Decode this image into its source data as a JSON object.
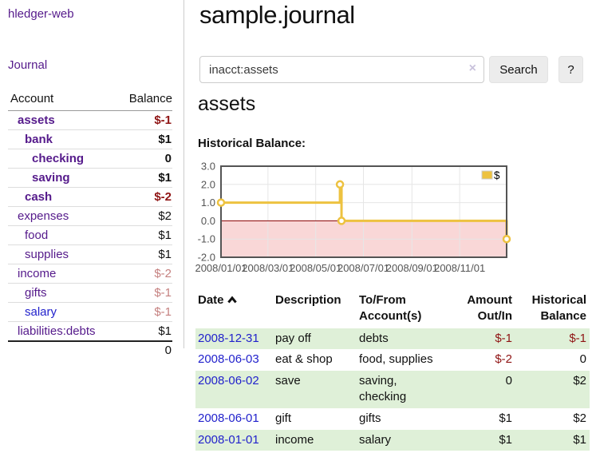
{
  "app": {
    "brand": "hledger-web"
  },
  "sidebar": {
    "journal_label": "Journal",
    "accounts_table": {
      "headers": {
        "account": "Account",
        "balance": "Balance"
      },
      "rows": [
        {
          "name": "assets",
          "depth": 0,
          "bold": true,
          "color": "purple",
          "balance": "$-1",
          "balance_class": "neg"
        },
        {
          "name": "bank",
          "depth": 1,
          "bold": true,
          "color": "purple",
          "balance": "$1",
          "balance_class": ""
        },
        {
          "name": "checking",
          "depth": 2,
          "bold": true,
          "color": "purple",
          "balance": "0",
          "balance_class": ""
        },
        {
          "name": "saving",
          "depth": 2,
          "bold": true,
          "color": "purple",
          "balance": "$1",
          "balance_class": ""
        },
        {
          "name": "cash",
          "depth": 1,
          "bold": true,
          "color": "purple",
          "balance": "$-2",
          "balance_class": "neg"
        },
        {
          "name": "expenses",
          "depth": 0,
          "bold": false,
          "color": "purple",
          "balance": "$2",
          "balance_class": ""
        },
        {
          "name": "food",
          "depth": 1,
          "bold": false,
          "color": "purple",
          "balance": "$1",
          "balance_class": ""
        },
        {
          "name": "supplies",
          "depth": 1,
          "bold": false,
          "color": "purple",
          "balance": "$1",
          "balance_class": ""
        },
        {
          "name": "income",
          "depth": 0,
          "bold": false,
          "color": "purple",
          "balance": "$-2",
          "balance_class": "negsoft"
        },
        {
          "name": "gifts",
          "depth": 1,
          "bold": false,
          "color": "purple",
          "balance": "$-1",
          "balance_class": "negsoft"
        },
        {
          "name": "salary",
          "depth": 1,
          "bold": false,
          "color": "blue",
          "balance": "$-1",
          "balance_class": "negsoft"
        },
        {
          "name": "liabilities:debts",
          "depth": 0,
          "bold": false,
          "color": "purple",
          "balance": "$1",
          "balance_class": ""
        }
      ],
      "total": "0"
    }
  },
  "main": {
    "title": "sample.journal",
    "search": {
      "value": "inacct:assets",
      "clear_icon": "×",
      "button_label": "Search",
      "help_label": "?"
    },
    "account_heading": "assets",
    "register": {
      "sort": {
        "column": "date",
        "direction": "ascending"
      },
      "headers": {
        "date": "Date",
        "description": "Description",
        "accounts": "To/From Account(s)",
        "amount": "Amount Out/In",
        "balance": "Historical Balance"
      },
      "rows": [
        {
          "date": "2008-12-31",
          "description": "pay off",
          "accounts": "debts",
          "amount": "$-1",
          "amount_negative": true,
          "balance": "$-1",
          "balance_negative": true,
          "shaded": true
        },
        {
          "date": "2008-06-03",
          "description": "eat & shop",
          "accounts": "food, supplies",
          "amount": "$-2",
          "amount_negative": true,
          "balance": "0",
          "balance_negative": false,
          "shaded": false
        },
        {
          "date": "2008-06-02",
          "description": "save",
          "accounts": "saving, checking",
          "amount": "0",
          "amount_negative": false,
          "balance": "$2",
          "balance_negative": false,
          "shaded": true
        },
        {
          "date": "2008-06-01",
          "description": "gift",
          "accounts": "gifts",
          "amount": "$1",
          "amount_negative": false,
          "balance": "$2",
          "balance_negative": false,
          "shaded": false
        },
        {
          "date": "2008-01-01",
          "description": "income",
          "accounts": "salary",
          "amount": "$1",
          "amount_negative": false,
          "balance": "$1",
          "balance_negative": false,
          "shaded": true
        }
      ]
    }
  },
  "chart_data": {
    "type": "line",
    "step": true,
    "title": "Historical Balance:",
    "series": [
      {
        "name": "$",
        "color": "#edc240",
        "points": [
          {
            "x": "2008-01-01",
            "y": 1
          },
          {
            "x": "2008-06-01",
            "y": 2
          },
          {
            "x": "2008-06-03",
            "y": 0
          },
          {
            "x": "2008-12-31",
            "y": -1
          }
        ]
      }
    ],
    "xlim": [
      "2008-01-01",
      "2008-12-31"
    ],
    "ylim": [
      -2,
      3
    ],
    "yticks": [
      3.0,
      2.0,
      1.0,
      0.0,
      -1.0,
      -2.0
    ],
    "xticks": [
      {
        "x": "2008-01-01",
        "label": "2008/01/01"
      },
      {
        "x": "2008-03-01",
        "label": "2008/03/01"
      },
      {
        "x": "2008-05-01",
        "label": "2008/05/01"
      },
      {
        "x": "2008-07-01",
        "label": "2008/07/01"
      },
      {
        "x": "2008-09-01",
        "label": "2008/09/01"
      },
      {
        "x": "2008-11-01",
        "label": "2008/11/01"
      }
    ],
    "grid": true,
    "legend_position": "top-right",
    "negative_region_fill": "#f9d7d7",
    "zero_line_color": "#8b0000",
    "grid_color": "#e6e6e6",
    "border_color": "#545454",
    "tick_label_color": "#545454"
  },
  "colors": {
    "link_purple": "#551a8b",
    "link_blue": "#2222cc",
    "negative_strong": "#8f1414",
    "negative_soft": "#c5807f",
    "row_shade_green": "#dff0d8"
  }
}
